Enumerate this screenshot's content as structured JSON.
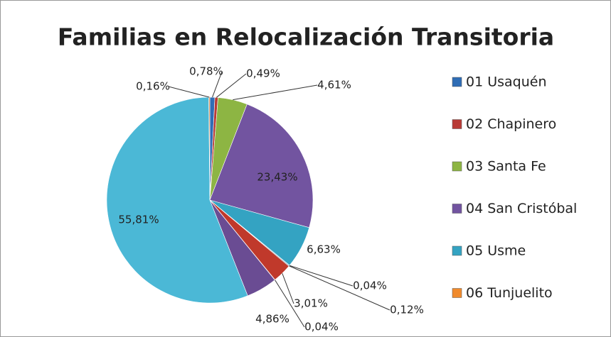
{
  "chart_data": {
    "type": "pie",
    "title": "Familias en Relocalización Transitoria",
    "categories": [
      "01 Usaquén",
      "02 Chapinero",
      "03 Santa Fe",
      "04 San Cristóbal",
      "05 Usme",
      "06 Tunjuelito",
      null,
      null,
      null,
      null,
      null,
      null
    ],
    "values": [
      0.78,
      0.49,
      4.61,
      23.43,
      6.63,
      0.04,
      0.12,
      3.01,
      0.04,
      4.86,
      55.81,
      0.16
    ],
    "value_labels": [
      "0,78%",
      "0,49%",
      "4,61%",
      "23,43%",
      "6,63%",
      "0,04%",
      "0,12%",
      "3,01%",
      "0,04%",
      "4,86%",
      "55,81%",
      "0,16%"
    ],
    "colors": [
      "#2f6db5",
      "#b83a36",
      "#8db543",
      "#7254a0",
      "#34a3c2",
      "#f08a2c",
      "#2c4d75",
      "#c0392b",
      "#76923c",
      "#6a4c93",
      "#4bb8d6",
      "#e07b2a"
    ]
  }
}
